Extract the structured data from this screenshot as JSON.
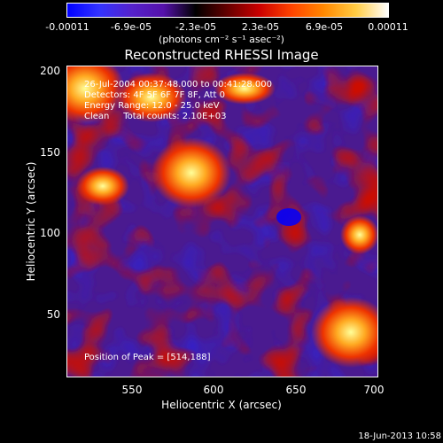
{
  "colorbar": {
    "ticks": [
      "-0.00011",
      "-6.9e-05",
      "-2.3e-05",
      "2.3e-05",
      "6.9e-05",
      "0.00011"
    ],
    "unit": "(photons cm⁻² s⁻¹ asec⁻²)",
    "colors": [
      "#0000ff",
      "#3333ff",
      "#5522cc",
      "#5511aa",
      "#000000",
      "#660000",
      "#cc0000",
      "#ff4400",
      "#ff8800",
      "#ffcc44",
      "#ffffff"
    ]
  },
  "chart_data": {
    "type": "heatmap",
    "title": "Reconstructed RHESSI Image",
    "xlabel": "Heliocentric X (arcsec)",
    "ylabel": "Heliocentric Y (arcsec)",
    "xlim": [
      510,
      700
    ],
    "ylim": [
      10,
      200
    ],
    "xticks": [
      "550",
      "600",
      "650",
      "700"
    ],
    "yticks": [
      "200",
      "150",
      "100",
      "50"
    ],
    "annotations": [
      "26-Jul-2004 00:37:48.000 to 00:41:28.000",
      "Detectors: 4F 5F 6F 7F 8F, Att 0",
      "Energy Range: 12.0 - 25.0 keV",
      "Clean     Total counts: 2.10E+03"
    ],
    "peak_text": "Position of Peak = [514,188]",
    "grid": false
  },
  "timestamp": "18-Jun-2013 10:58"
}
